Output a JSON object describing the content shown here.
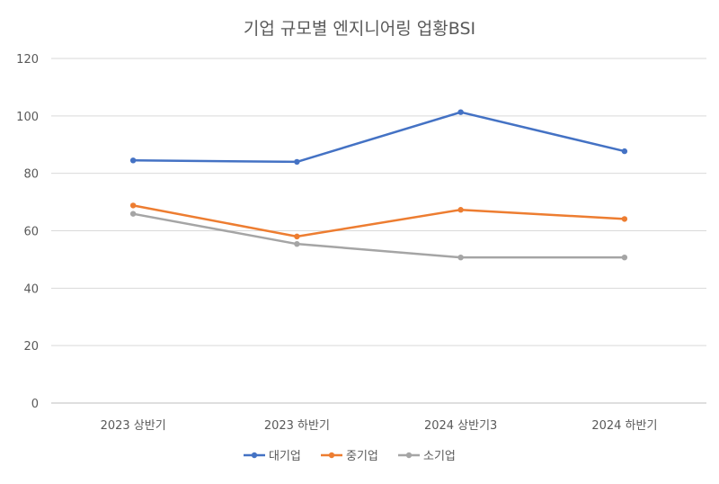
{
  "chart_data": {
    "type": "line",
    "title": "기업 규모별 엔지니어링 업황BSI",
    "xlabel": "",
    "ylabel": "",
    "categories": [
      "2023 상반기",
      "2023 하반기",
      "2024 상반기3",
      "2024 하반기"
    ],
    "ylim": [
      0,
      120
    ],
    "yticks": [
      0,
      20,
      40,
      60,
      80,
      100,
      120
    ],
    "grid": true,
    "legend": "bottom",
    "series": [
      {
        "name": "대기업",
        "color": "#4472C4",
        "values": [
          84.5,
          84,
          101.3,
          87.7
        ]
      },
      {
        "name": "중기업",
        "color": "#ED7D31",
        "values": [
          68.8,
          58,
          67.3,
          64.1
        ]
      },
      {
        "name": "소기업",
        "color": "#A5A5A5",
        "values": [
          65.9,
          55.4,
          50.7,
          50.7
        ]
      }
    ]
  }
}
